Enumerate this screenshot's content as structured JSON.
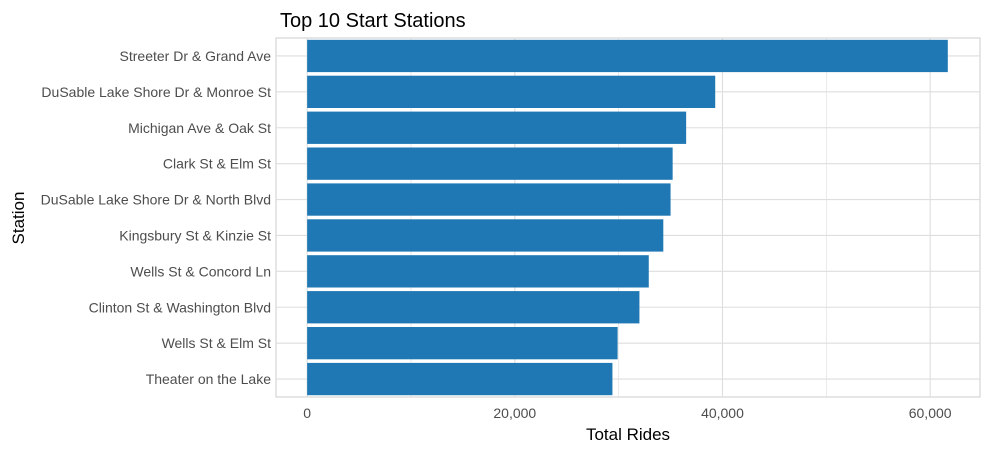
{
  "chart_data": {
    "type": "bar",
    "orientation": "horizontal",
    "title": "Top 10 Start Stations",
    "xlabel": "Total Rides",
    "ylabel": "Station",
    "categories": [
      "Streeter Dr & Grand Ave",
      "DuSable Lake Shore Dr & Monroe St",
      "Michigan Ave & Oak St",
      "Clark St & Elm St",
      "DuSable Lake Shore Dr & North Blvd",
      "Kingsbury St & Kinzie St",
      "Wells St & Concord Ln",
      "Clinton St & Washington Blvd",
      "Wells St & Elm St",
      "Theater on the Lake"
    ],
    "values": [
      61700,
      39300,
      36500,
      35200,
      35000,
      34300,
      32900,
      32000,
      29900,
      29400
    ],
    "xlim": [
      -3000,
      64800
    ],
    "x_ticks": [
      0,
      20000,
      40000,
      60000
    ],
    "x_tick_labels": [
      "0",
      "20,000",
      "40,000",
      "60,000"
    ],
    "grid": true,
    "colors": {
      "bar": "#1f78b4",
      "grid": "#dedede",
      "text": "#4d4d4d"
    }
  }
}
